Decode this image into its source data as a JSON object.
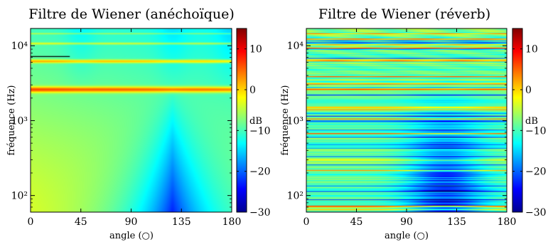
{
  "chart_data": [
    {
      "type": "heatmap",
      "title": "Filtre de Wiener (anéchoïque)",
      "xlabel": "angle (○)",
      "ylabel": "fréquence (Hz)",
      "colorbar_label": "dB",
      "x_ticks": [
        0,
        45,
        90,
        135,
        180
      ],
      "xlim": [
        0,
        180
      ],
      "y_scale": "log",
      "ylim": [
        60,
        17000
      ],
      "y_ticks": [
        {
          "value": 100,
          "label": "10²"
        },
        {
          "value": 1000,
          "label": "10³"
        },
        {
          "value": 10000,
          "label": "10⁴"
        }
      ],
      "colorbar_ticks": [
        10,
        0,
        -10,
        -20,
        -30
      ],
      "clim": [
        -30,
        15
      ],
      "colormap": "jet",
      "pattern": "anechoic"
    },
    {
      "type": "heatmap",
      "title": "Filtre de Wiener (réverb)",
      "xlabel": "angle (○)",
      "ylabel": "fréquence (Hz)",
      "colorbar_label": "dB",
      "x_ticks": [
        0,
        45,
        90,
        135,
        180
      ],
      "xlim": [
        0,
        180
      ],
      "y_scale": "log",
      "ylim": [
        60,
        17000
      ],
      "y_ticks": [
        {
          "value": 100,
          "label": "10²"
        },
        {
          "value": 1000,
          "label": "10³"
        },
        {
          "value": 10000,
          "label": "10⁴"
        }
      ],
      "colorbar_ticks": [
        10,
        0,
        -10,
        -20,
        -30
      ],
      "clim": [
        -30,
        15
      ],
      "colormap": "jet",
      "pattern": "reverb"
    }
  ]
}
